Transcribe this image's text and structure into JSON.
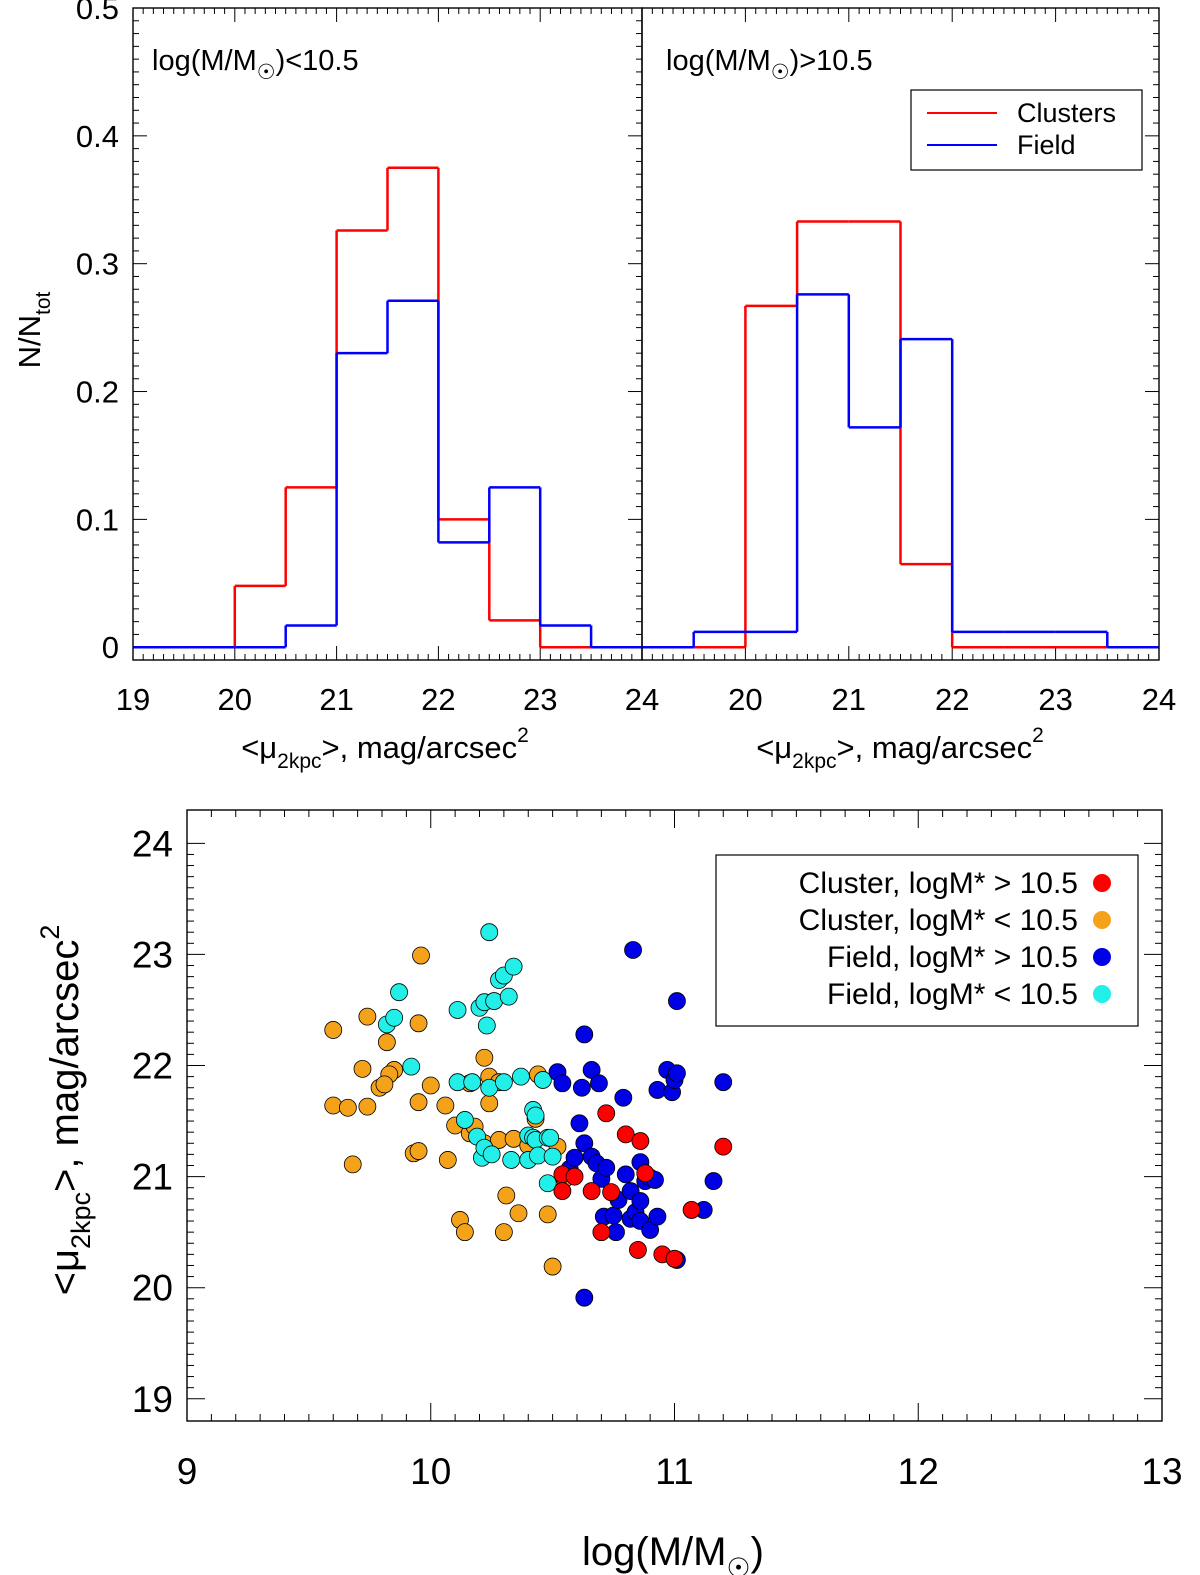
{
  "chart_data": [
    {
      "type": "histogram",
      "panel_label": "log(M/M",
      "panel_label_tail": ")<10.5",
      "xlabel": "<μ",
      "xlabel_sub": "2kpc",
      "xlabel_tail": ">, mag/arcsec",
      "xlabel_sup": "2",
      "ylabel": "N/N",
      "ylabel_sub": "tot",
      "xlim": [
        19,
        24
      ],
      "ylim": [
        -0.01,
        0.5
      ],
      "x_ticks": [
        "19",
        "20",
        "21",
        "22",
        "23",
        "24"
      ],
      "y_ticks": [
        "0",
        "0.1",
        "0.2",
        "0.3",
        "0.4",
        "0.5"
      ],
      "bin_edges": [
        19.0,
        19.5,
        20.0,
        20.5,
        21.0,
        21.5,
        22.0,
        22.5,
        23.0,
        23.5,
        24.0
      ],
      "series": [
        {
          "name": "Clusters",
          "color": "#ff0000",
          "values": [
            0,
            0,
            0.048,
            0.125,
            0.326,
            0.375,
            0.1,
            0.021,
            0,
            0
          ]
        },
        {
          "name": "Field",
          "color": "#0000ff",
          "values": [
            0,
            0,
            0,
            0.017,
            0.23,
            0.271,
            0.082,
            0.125,
            0.017,
            0
          ]
        }
      ]
    },
    {
      "type": "histogram",
      "panel_label": "log(M/M",
      "panel_label_tail": ")>10.5",
      "xlabel": "<μ",
      "xlabel_sub": "2kpc",
      "xlabel_tail": ">, mag/arcsec",
      "xlabel_sup": "2",
      "xlim": [
        19,
        24
      ],
      "ylim": [
        -0.01,
        0.5
      ],
      "x_ticks": [
        "",
        "20",
        "21",
        "22",
        "23",
        "24"
      ],
      "bin_edges": [
        19.0,
        19.5,
        20.0,
        20.5,
        21.0,
        21.5,
        22.0,
        22.5,
        23.0,
        23.5,
        24.0
      ],
      "legend": [
        "Clusters",
        "Field"
      ],
      "series": [
        {
          "name": "Clusters",
          "color": "#ff0000",
          "values": [
            0,
            0,
            0.267,
            0.333,
            0.333,
            0.065,
            0,
            0,
            0,
            0
          ]
        },
        {
          "name": "Field",
          "color": "#0000ff",
          "values": [
            0,
            0.012,
            0.012,
            0.276,
            0.172,
            0.241,
            0.012,
            0.012,
            0.012,
            0
          ]
        }
      ]
    },
    {
      "type": "scatter",
      "xlabel": "log(M/M",
      "xlabel_tail": ")",
      "ylabel": "<μ",
      "ylabel_sub": "2kpc",
      "ylabel_tail": ">, mag/arcsec",
      "ylabel_sup": "2",
      "xlim": [
        9,
        13
      ],
      "ylim": [
        18.8,
        24.3
      ],
      "x_ticks": [
        "9",
        "10",
        "11",
        "12",
        "13"
      ],
      "y_ticks": [
        "19",
        "20",
        "21",
        "22",
        "23",
        "24"
      ],
      "series": [
        {
          "name": "Cluster, logM* > 10.5",
          "color": "#ff0000",
          "points": [
            [
              10.54,
              21.02
            ],
            [
              10.59,
              21.0
            ],
            [
              10.54,
              20.87
            ],
            [
              10.66,
              20.87
            ],
            [
              10.7,
              20.5
            ],
            [
              10.72,
              21.57
            ],
            [
              10.74,
              20.86
            ],
            [
              10.8,
              21.38
            ],
            [
              10.86,
              21.32
            ],
            [
              10.85,
              20.34
            ],
            [
              10.88,
              21.03
            ],
            [
              10.95,
              20.3
            ],
            [
              11.0,
              20.26
            ],
            [
              11.07,
              20.7
            ],
            [
              11.2,
              21.27
            ]
          ]
        },
        {
          "name": "Cluster, logM* < 10.5",
          "color": "#f5a21b",
          "points": [
            [
              9.6,
              22.32
            ],
            [
              9.6,
              21.64
            ],
            [
              9.66,
              21.62
            ],
            [
              9.74,
              21.63
            ],
            [
              9.68,
              21.11
            ],
            [
              9.74,
              22.44
            ],
            [
              9.72,
              21.97
            ],
            [
              9.79,
              21.8
            ],
            [
              9.85,
              21.96
            ],
            [
              9.82,
              22.21
            ],
            [
              9.83,
              21.92
            ],
            [
              9.81,
              21.83
            ],
            [
              9.93,
              21.21
            ],
            [
              9.95,
              21.23
            ],
            [
              9.95,
              21.67
            ],
            [
              9.95,
              22.38
            ],
            [
              9.96,
              22.99
            ],
            [
              10.0,
              21.82
            ],
            [
              10.06,
              21.64
            ],
            [
              10.07,
              21.15
            ],
            [
              10.1,
              21.46
            ],
            [
              10.12,
              20.61
            ],
            [
              10.14,
              20.5
            ],
            [
              10.16,
              21.84
            ],
            [
              10.16,
              21.39
            ],
            [
              10.18,
              21.45
            ],
            [
              10.22,
              22.07
            ],
            [
              10.22,
              21.3
            ],
            [
              10.24,
              21.9
            ],
            [
              10.24,
              21.66
            ],
            [
              10.28,
              21.85
            ],
            [
              10.28,
              21.33
            ],
            [
              10.3,
              20.5
            ],
            [
              10.31,
              20.83
            ],
            [
              10.34,
              21.34
            ],
            [
              10.36,
              20.67
            ],
            [
              10.4,
              21.28
            ],
            [
              10.43,
              21.52
            ],
            [
              10.44,
              21.92
            ],
            [
              10.48,
              20.66
            ],
            [
              10.5,
              20.19
            ],
            [
              10.52,
              21.27
            ],
            [
              10.55,
              20.98
            ]
          ]
        },
        {
          "name": "Field, logM* > 10.5",
          "color": "#0000e6",
          "points": [
            [
              10.52,
              21.94
            ],
            [
              10.54,
              21.84
            ],
            [
              10.57,
              21.07
            ],
            [
              10.59,
              21.17
            ],
            [
              10.61,
              21.48
            ],
            [
              10.62,
              21.8
            ],
            [
              10.63,
              22.28
            ],
            [
              10.63,
              21.3
            ],
            [
              10.63,
              19.91
            ],
            [
              10.66,
              21.96
            ],
            [
              10.66,
              21.18
            ],
            [
              10.68,
              21.12
            ],
            [
              10.69,
              21.84
            ],
            [
              10.7,
              20.98
            ],
            [
              10.71,
              20.64
            ],
            [
              10.72,
              21.08
            ],
            [
              10.75,
              20.65
            ],
            [
              10.76,
              20.5
            ],
            [
              10.77,
              20.79
            ],
            [
              10.79,
              21.71
            ],
            [
              10.8,
              21.02
            ],
            [
              10.82,
              20.62
            ],
            [
              10.82,
              20.87
            ],
            [
              10.84,
              20.68
            ],
            [
              10.86,
              20.78
            ],
            [
              10.86,
              21.13
            ],
            [
              10.86,
              20.6
            ],
            [
              10.83,
              23.04
            ],
            [
              10.88,
              20.96
            ],
            [
              10.9,
              20.99
            ],
            [
              10.9,
              20.52
            ],
            [
              10.92,
              20.97
            ],
            [
              10.93,
              21.78
            ],
            [
              10.93,
              20.64
            ],
            [
              10.97,
              21.96
            ],
            [
              10.99,
              21.76
            ],
            [
              11.0,
              21.87
            ],
            [
              11.01,
              22.58
            ],
            [
              11.01,
              21.93
            ],
            [
              11.01,
              20.25
            ],
            [
              11.12,
              20.7
            ],
            [
              11.16,
              20.96
            ],
            [
              11.2,
              21.85
            ]
          ]
        },
        {
          "name": "Field, logM* < 10.5",
          "color": "#22f0e8",
          "points": [
            [
              9.82,
              22.37
            ],
            [
              9.85,
              22.43
            ],
            [
              9.87,
              22.66
            ],
            [
              9.92,
              21.99
            ],
            [
              10.11,
              21.85
            ],
            [
              10.14,
              21.51
            ],
            [
              10.17,
              21.85
            ],
            [
              10.19,
              21.36
            ],
            [
              10.21,
              21.17
            ],
            [
              10.22,
              21.26
            ],
            [
              10.11,
              22.5
            ],
            [
              10.2,
              22.52
            ],
            [
              10.23,
              22.36
            ],
            [
              10.22,
              22.57
            ],
            [
              10.24,
              23.2
            ],
            [
              10.24,
              21.8
            ],
            [
              10.25,
              21.2
            ],
            [
              10.26,
              22.58
            ],
            [
              10.28,
              22.77
            ],
            [
              10.3,
              22.81
            ],
            [
              10.3,
              21.85
            ],
            [
              10.32,
              22.62
            ],
            [
              10.33,
              21.15
            ],
            [
              10.34,
              22.89
            ],
            [
              10.37,
              21.9
            ],
            [
              10.4,
              21.15
            ],
            [
              10.4,
              21.37
            ],
            [
              10.42,
              21.6
            ],
            [
              10.42,
              21.35
            ],
            [
              10.43,
              21.33
            ],
            [
              10.43,
              21.55
            ],
            [
              10.46,
              21.87
            ],
            [
              10.48,
              21.35
            ],
            [
              10.44,
              21.19
            ],
            [
              10.49,
              21.35
            ],
            [
              10.48,
              20.94
            ],
            [
              10.5,
              21.18
            ]
          ]
        }
      ]
    }
  ]
}
